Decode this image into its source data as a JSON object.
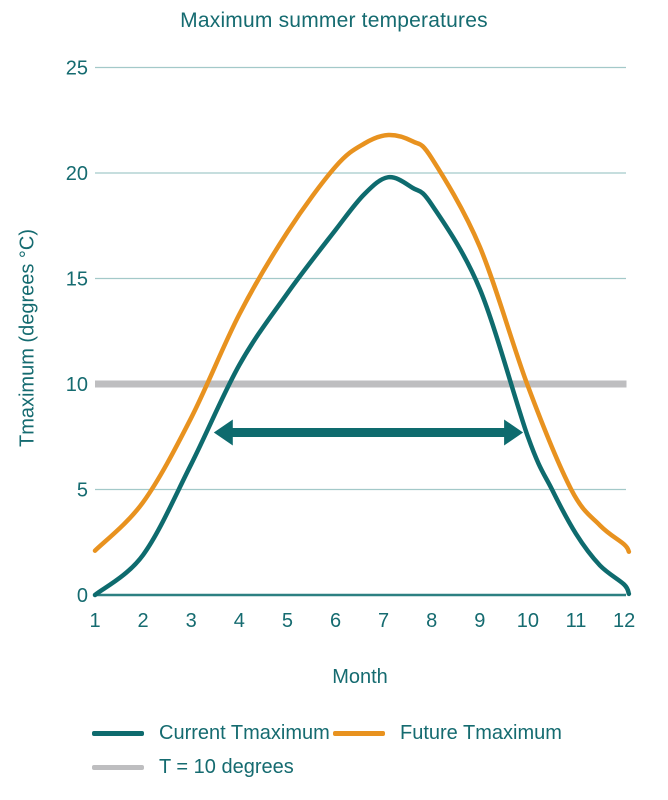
{
  "title": "Maximum summer temperatures",
  "xlabel": "Month",
  "ylabel": "Tmaximum (degrees °C)",
  "colors": {
    "teal": "#0E6B6E",
    "orange": "#E8921F",
    "gray": "#BEBEC0",
    "grid": "#A3C9C9",
    "axis": "#2C8082",
    "text": "#156B70"
  },
  "legend": {
    "items": [
      {
        "label": "Current Tmaximum",
        "color": "#0E6B6E"
      },
      {
        "label": "Future Tmaximum",
        "color": "#E8921F"
      },
      {
        "label": "T = 10 degrees",
        "color": "#BEBEC0"
      }
    ]
  },
  "chart_data": {
    "type": "line",
    "title": "Maximum summer temperatures",
    "xlabel": "Month",
    "ylabel": "Tmaximum (degrees °C)",
    "x_ticks": [
      1,
      2,
      3,
      4,
      5,
      6,
      7,
      8,
      9,
      10,
      11,
      12
    ],
    "y_ticks": [
      0,
      5,
      10,
      15,
      20,
      25
    ],
    "xlim": [
      1,
      12.1
    ],
    "ylim": [
      0,
      25
    ],
    "grid": "horizontal",
    "legend_position": "bottom-left",
    "series": [
      {
        "name": "Current Tmaximum",
        "color": "#0E6B6E",
        "points": [
          [
            1,
            0
          ],
          [
            2,
            1.9
          ],
          [
            3,
            6.2
          ],
          [
            4,
            10.9
          ],
          [
            5,
            14.3
          ],
          [
            6,
            17.3
          ],
          [
            6.6,
            19.0
          ],
          [
            7.1,
            19.8
          ],
          [
            7.6,
            19.3
          ],
          [
            8,
            18.5
          ],
          [
            9,
            14.5
          ],
          [
            10,
            7.5
          ],
          [
            10.5,
            5
          ],
          [
            11,
            2.9
          ],
          [
            11.5,
            1.4
          ],
          [
            12,
            0.5
          ],
          [
            12.1,
            0.05
          ]
        ]
      },
      {
        "name": "Future Tmaximum",
        "color": "#E8921F",
        "points": [
          [
            1,
            2.1
          ],
          [
            2,
            4.4
          ],
          [
            3,
            8.4
          ],
          [
            4,
            13.3
          ],
          [
            5,
            17.2
          ],
          [
            6,
            20.3
          ],
          [
            6.6,
            21.4
          ],
          [
            7.1,
            21.8
          ],
          [
            7.6,
            21.5
          ],
          [
            8,
            20.7
          ],
          [
            9,
            16.5
          ],
          [
            10,
            9.9
          ],
          [
            10.9,
            5
          ],
          [
            11.5,
            3.3
          ],
          [
            12,
            2.4
          ],
          [
            12.1,
            2.05
          ]
        ]
      },
      {
        "name": "T = 10 degrees",
        "color": "#BEBEC0",
        "points": [
          [
            1,
            10
          ],
          [
            12.05,
            10
          ]
        ]
      }
    ],
    "annotations": [
      {
        "type": "double-arrow",
        "y": 7.7,
        "x_start": 3.47,
        "x_end": 9.9,
        "color": "#0E6B6E"
      }
    ]
  }
}
